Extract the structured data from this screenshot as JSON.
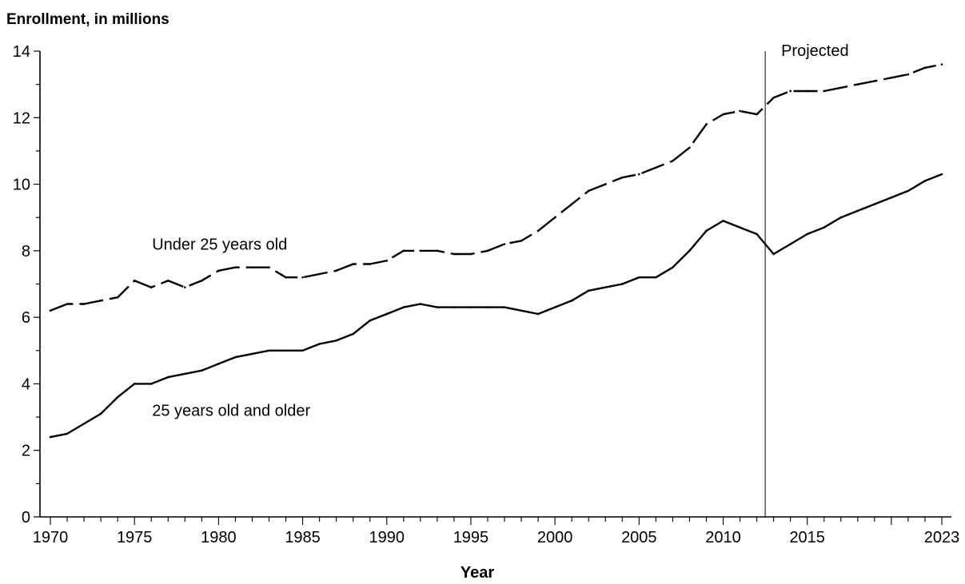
{
  "chart_data": {
    "type": "line",
    "title": "Enrollment, in millions",
    "xlabel": "Year",
    "ylabel": "",
    "xlim": [
      1970,
      2023
    ],
    "ylim": [
      0,
      14
    ],
    "yticks": [
      0,
      2,
      4,
      6,
      8,
      10,
      12,
      14
    ],
    "xtick_labels": [
      1970,
      1975,
      1980,
      1985,
      1990,
      1995,
      2000,
      2005,
      2010,
      2015,
      2023
    ],
    "projection_start": 2012.5,
    "projection_label": "Projected",
    "grid": false,
    "legend": "none",
    "series": [
      {
        "name": "Under 25 years old",
        "style": "dashed",
        "color": "#000000",
        "x": [
          1970,
          1971,
          1972,
          1973,
          1974,
          1975,
          1976,
          1977,
          1978,
          1979,
          1980,
          1981,
          1982,
          1983,
          1984,
          1985,
          1986,
          1987,
          1988,
          1989,
          1990,
          1991,
          1992,
          1993,
          1994,
          1995,
          1996,
          1997,
          1998,
          1999,
          2000,
          2001,
          2002,
          2003,
          2004,
          2005,
          2006,
          2007,
          2008,
          2009,
          2010,
          2011,
          2012,
          2013,
          2014,
          2015,
          2016,
          2017,
          2018,
          2019,
          2020,
          2021,
          2022,
          2023
        ],
        "values": [
          6.2,
          6.4,
          6.4,
          6.5,
          6.6,
          7.1,
          6.9,
          7.1,
          6.9,
          7.1,
          7.4,
          7.5,
          7.5,
          7.5,
          7.2,
          7.2,
          7.3,
          7.4,
          7.6,
          7.6,
          7.7,
          8.0,
          8.0,
          8.0,
          7.9,
          7.9,
          8.0,
          8.2,
          8.3,
          8.6,
          9.0,
          9.4,
          9.8,
          10.0,
          10.2,
          10.3,
          10.5,
          10.7,
          11.1,
          11.8,
          12.1,
          12.2,
          12.1,
          12.6,
          12.8,
          12.8,
          12.8,
          12.9,
          13.0,
          13.1,
          13.2,
          13.3,
          13.5,
          13.6
        ]
      },
      {
        "name": "25 years old and older",
        "style": "solid",
        "color": "#000000",
        "x": [
          1970,
          1971,
          1972,
          1973,
          1974,
          1975,
          1976,
          1977,
          1978,
          1979,
          1980,
          1981,
          1982,
          1983,
          1984,
          1985,
          1986,
          1987,
          1988,
          1989,
          1990,
          1991,
          1992,
          1993,
          1994,
          1995,
          1996,
          1997,
          1998,
          1999,
          2000,
          2001,
          2002,
          2003,
          2004,
          2005,
          2006,
          2007,
          2008,
          2009,
          2010,
          2011,
          2012,
          2013,
          2014,
          2015,
          2016,
          2017,
          2018,
          2019,
          2020,
          2021,
          2022,
          2023
        ],
        "values": [
          2.4,
          2.5,
          2.8,
          3.1,
          3.6,
          4.0,
          4.0,
          4.2,
          4.3,
          4.4,
          4.6,
          4.8,
          4.9,
          5.0,
          5.0,
          5.0,
          5.2,
          5.3,
          5.5,
          5.9,
          6.1,
          6.3,
          6.4,
          6.3,
          6.3,
          6.3,
          6.3,
          6.3,
          6.2,
          6.1,
          6.3,
          6.5,
          6.8,
          6.9,
          7.0,
          7.2,
          7.2,
          7.5,
          8.0,
          8.6,
          8.9,
          8.7,
          8.5,
          7.9,
          8.2,
          8.5,
          8.7,
          9.0,
          9.2,
          9.4,
          9.6,
          9.8,
          10.1,
          10.3
        ]
      }
    ],
    "annotations": [
      {
        "text": "Under 25 years old",
        "x": 1976,
        "y": 8.2
      },
      {
        "text": "25 years old and older",
        "x": 1976,
        "y": 3.2
      }
    ]
  }
}
